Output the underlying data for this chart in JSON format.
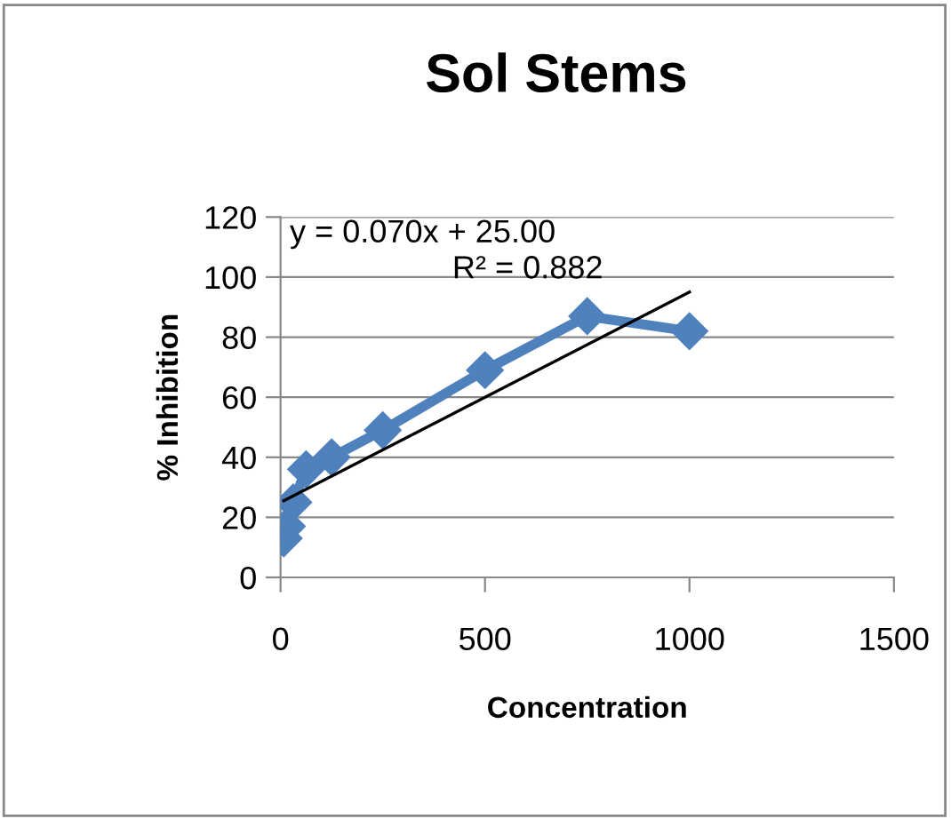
{
  "chart_data": {
    "type": "line",
    "title": "Sol Stems",
    "xlabel": "Concentration",
    "ylabel": "% Inhibition",
    "xlim": [
      0,
      1500
    ],
    "xticks": [
      0,
      500,
      1000,
      1500
    ],
    "ylim": [
      0,
      120
    ],
    "yticks": [
      0,
      20,
      40,
      60,
      80,
      100,
      120
    ],
    "grid": "y",
    "marker": "diamond",
    "line_style": "solid",
    "series": [
      {
        "x": [
          7.8,
          15.6,
          31.25,
          62.5,
          125,
          250,
          500,
          750,
          1000
        ],
        "values": [
          13,
          17,
          25,
          36,
          40,
          49,
          69,
          87,
          82
        ],
        "color": "#4f81bd"
      },
      {
        "type": "line",
        "x": [
          7.8,
          1000
        ],
        "values": [
          25.5,
          95
        ],
        "color": "#000000",
        "marker": "none"
      }
    ],
    "annotations": [
      "y = 0.070x + 25.00",
      "R² = 0.882"
    ]
  }
}
